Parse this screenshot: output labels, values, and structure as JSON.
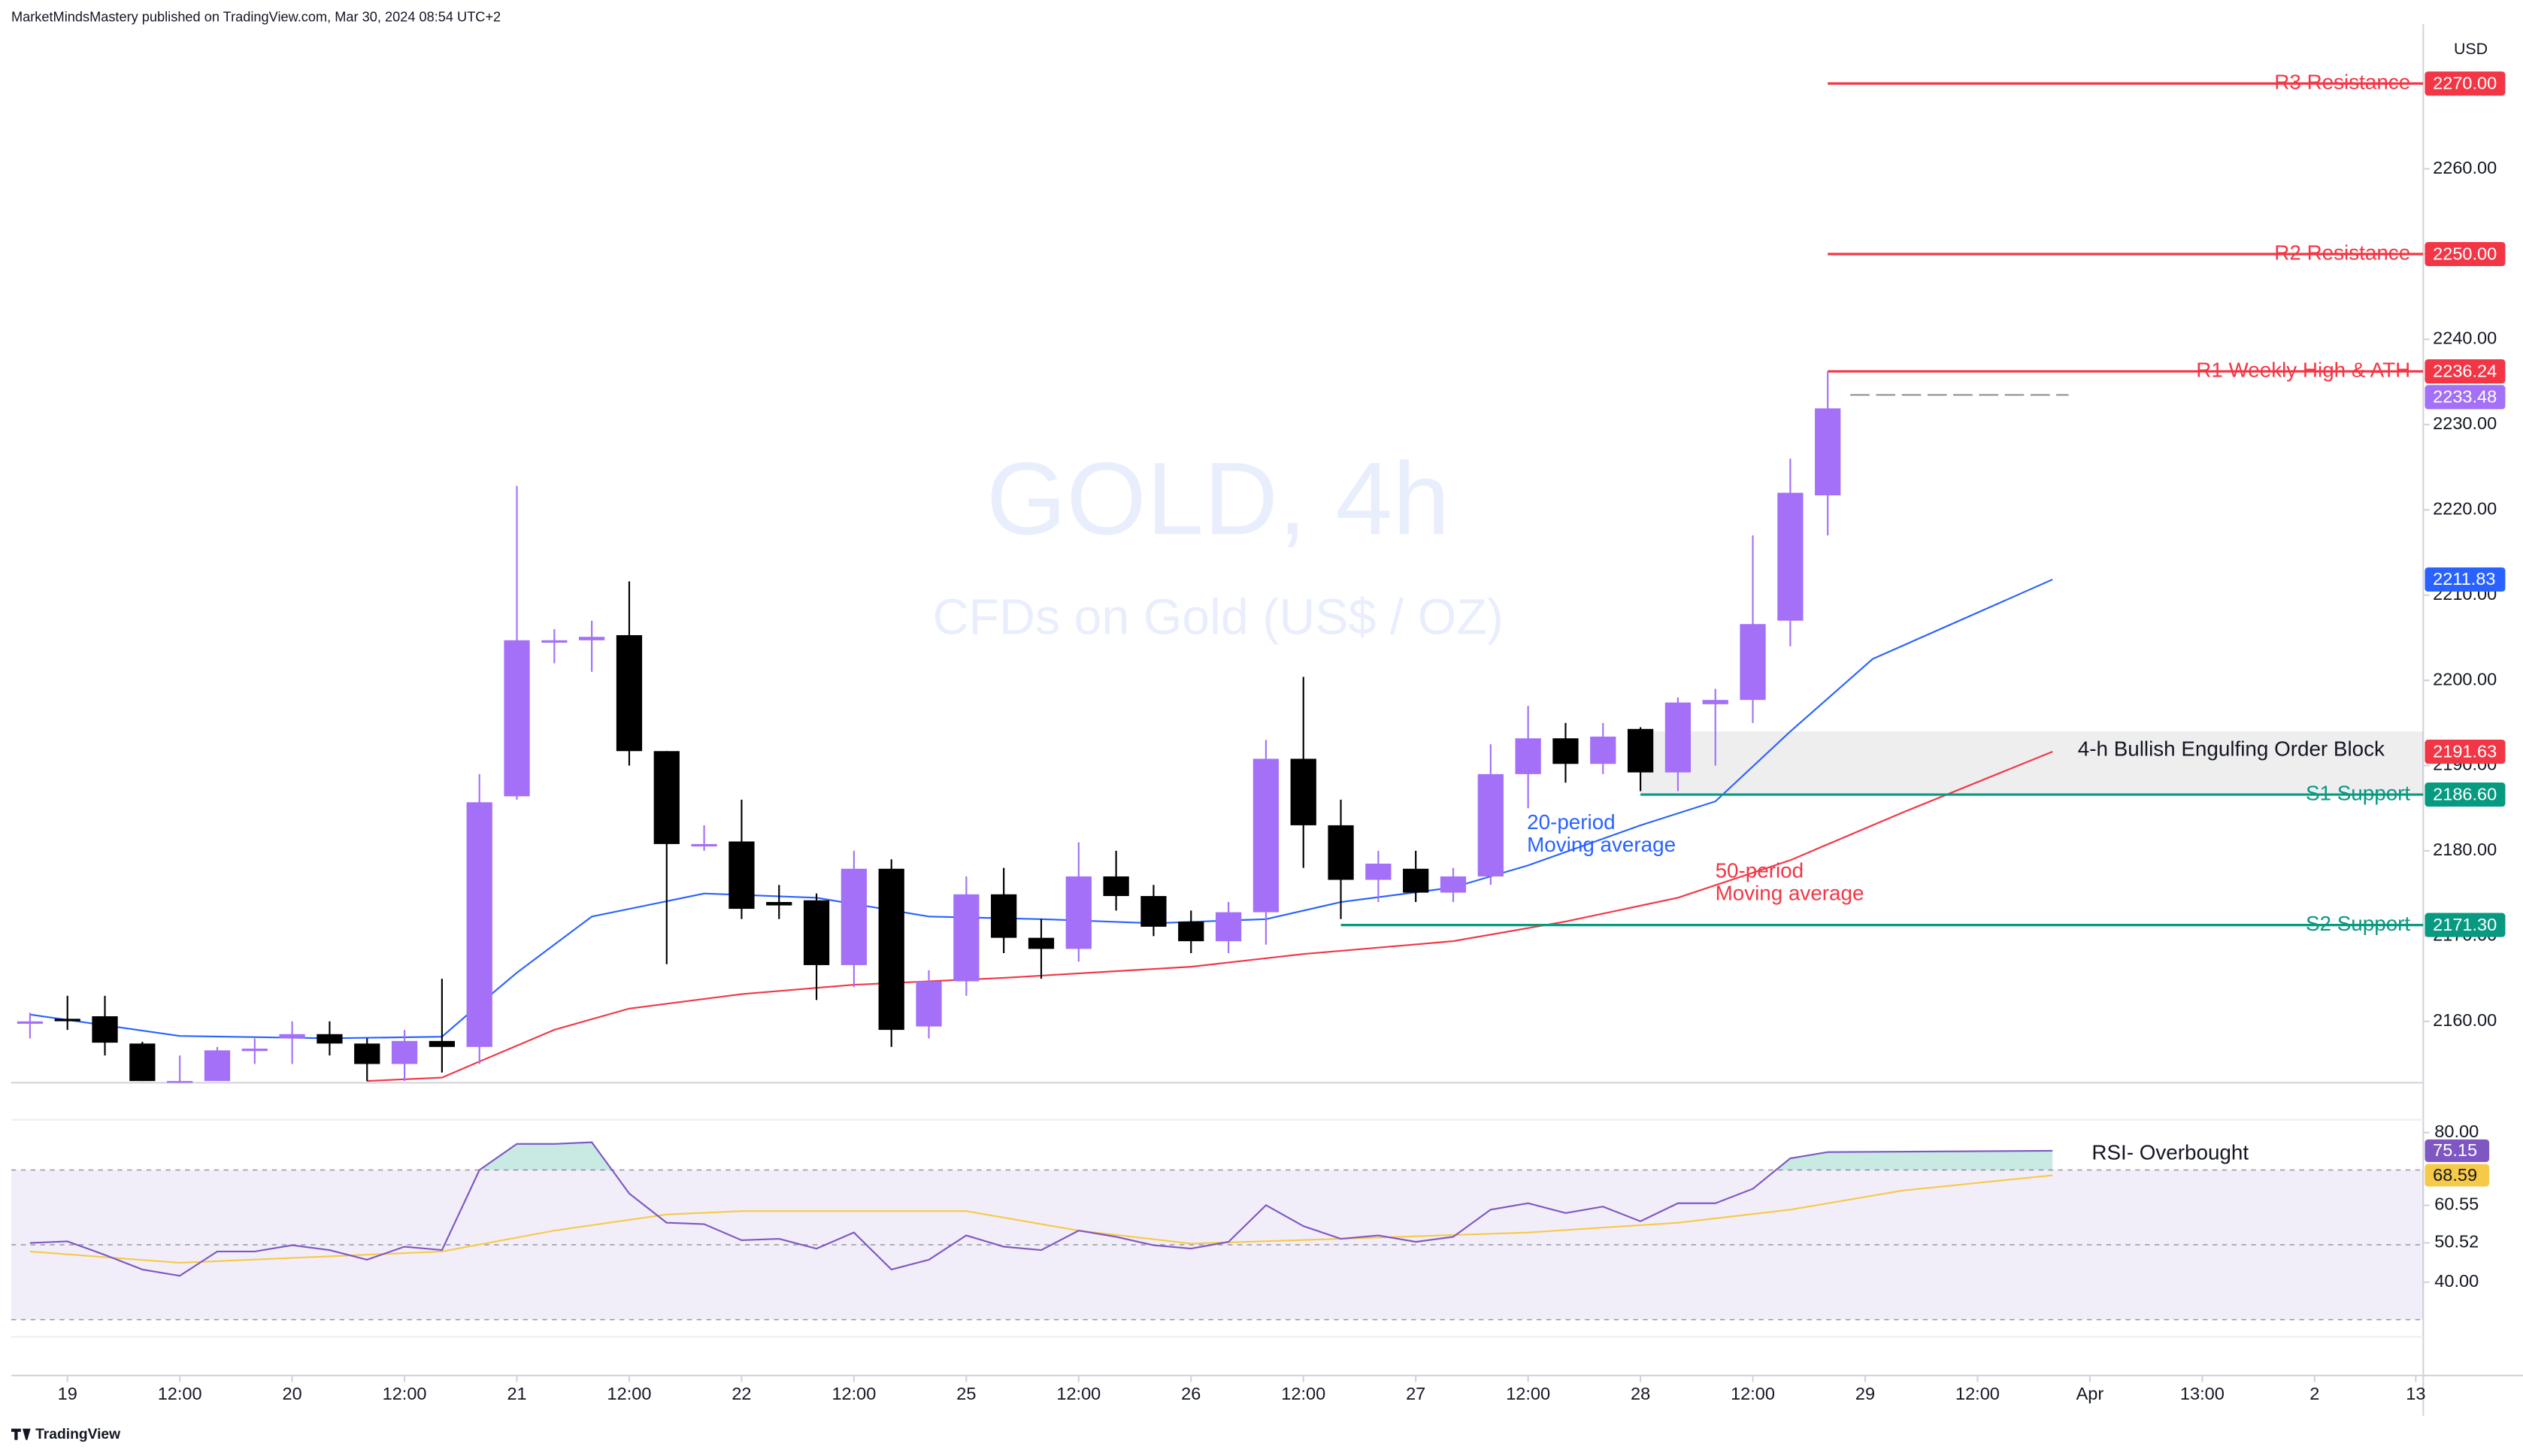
{
  "header": "MarketMindsMastery published on TradingView.com, Mar 30, 2024 08:54 UTC+2",
  "footer": "TradingView",
  "chart_data": {
    "type": "candlestick",
    "title": "GOLD, 4h",
    "subtitle": "CFDs on Gold (US$ / OZ)",
    "currency": "USD",
    "up_color": "#a370f7",
    "down_color": "#000000",
    "open": [
      2160,
      2160.3,
      2160.6,
      2157.4,
      2153,
      2153,
      2156.8,
      2158,
      2158.5,
      2157.4,
      2155,
      2157.7,
      2157,
      2186.4,
      2204.7,
      2204.7,
      2205.3,
      2191.7,
      2180.8,
      2181.1,
      2174,
      2174.2,
      2166.6,
      2177.9,
      2159.4,
      2164.7,
      2174.9,
      2169.8,
      2168.5,
      2177,
      2174.7,
      2171.7,
      2169.4,
      2172.8,
      2190.8,
      2183,
      2176.6,
      2177.9,
      2175.1,
      2177,
      2189,
      2193.2,
      2190.2,
      2194.3,
      2189.2,
      2197.2,
      2197.7,
      2207,
      2221.7
    ],
    "high": [
      2161,
      2163,
      2163,
      2157.6,
      2156,
      2157,
      2158,
      2160,
      2160,
      2158,
      2159,
      2165,
      2189,
      2222.8,
      2206,
      2207,
      2211.6,
      2191.7,
      2183,
      2186,
      2176,
      2175,
      2180,
      2179,
      2166,
      2177,
      2178,
      2172,
      2181,
      2180,
      2176,
      2173,
      2174,
      2193,
      2200.4,
      2186,
      2180,
      2180,
      2178,
      2192.5,
      2197,
      2195,
      2195,
      2194.5,
      2198,
      2199,
      2217,
      2226,
      2236.24
    ],
    "low": [
      2158,
      2159,
      2156,
      2153,
      2152.8,
      2153,
      2155,
      2155,
      2156,
      2153,
      2153,
      2154,
      2155,
      2186,
      2202,
      2201,
      2190,
      2166.7,
      2180,
      2172,
      2172,
      2162.5,
      2164,
      2157,
      2158,
      2163,
      2168,
      2165,
      2167,
      2173,
      2170,
      2168,
      2168,
      2169,
      2178,
      2172,
      2174,
      2174,
      2174,
      2176,
      2185,
      2188,
      2189,
      2187,
      2187,
      2190,
      2195,
      2204,
      2217
    ],
    "close": [
      2160,
      2160.2,
      2157.5,
      2153,
      2153,
      2156.6,
      2156.8,
      2158.5,
      2157.4,
      2155,
      2157.7,
      2157,
      2185.7,
      2204.7,
      2204.7,
      2205.1,
      2191.7,
      2180.8,
      2180.8,
      2173.2,
      2173.6,
      2166.6,
      2177.9,
      2159,
      2164.7,
      2174.9,
      2169.8,
      2168.5,
      2177,
      2174.7,
      2171.1,
      2169.4,
      2172.8,
      2190.8,
      2183,
      2176.6,
      2178.5,
      2175.1,
      2177,
      2189,
      2193.2,
      2190.2,
      2193.4,
      2189.2,
      2197.4,
      2197.7,
      2206.6,
      2222,
      2231.9
    ],
    "xticks": [
      {
        "value": 1,
        "label": "19"
      },
      {
        "value": 4,
        "label": "12:00"
      },
      {
        "value": 7,
        "label": "20"
      },
      {
        "value": 10,
        "label": "12:00"
      },
      {
        "value": 13,
        "label": "21"
      },
      {
        "value": 16,
        "label": "12:00"
      },
      {
        "value": 19,
        "label": "22"
      },
      {
        "value": 22,
        "label": "12:00"
      },
      {
        "value": 25,
        "label": "25"
      },
      {
        "value": 28,
        "label": "12:00"
      },
      {
        "value": 31,
        "label": "26"
      },
      {
        "value": 34,
        "label": "12:00"
      },
      {
        "value": 37,
        "label": "27"
      },
      {
        "value": 40,
        "label": "12:00"
      },
      {
        "value": 43,
        "label": "28"
      },
      {
        "value": 46,
        "label": "12:00"
      },
      {
        "value": 49,
        "label": "29"
      },
      {
        "value": 52,
        "label": "12:00"
      },
      {
        "value": 55,
        "label": "Apr"
      },
      {
        "value": 58,
        "label": "13:00"
      },
      {
        "value": 61,
        "label": "2"
      },
      {
        "value": 63.7,
        "label": "13"
      }
    ],
    "xlim": [
      -0.5,
      63.9
    ],
    "ylim": [
      2152.8,
      2279.8
    ],
    "yticks": [
      {
        "value": 2160,
        "label": "2160.00"
      },
      {
        "value": 2170,
        "label": "2170.00"
      },
      {
        "value": 2180,
        "label": "2180.00"
      },
      {
        "value": 2190,
        "label": "2190.00"
      },
      {
        "value": 2200,
        "label": "2200.00"
      },
      {
        "value": 2210,
        "label": "2210.00"
      },
      {
        "value": 2220,
        "label": "2220.00"
      },
      {
        "value": 2230,
        "label": "2230.00"
      },
      {
        "value": 2240,
        "label": "2240.00"
      },
      {
        "value": 2250,
        "label": "2250.00"
      },
      {
        "value": 2260,
        "label": "2260.00"
      }
    ],
    "moving_averages": [
      {
        "name": [
          "20-period",
          "Moving average"
        ],
        "color": "#2962ff",
        "bar_index": [
          0,
          4,
          8,
          11,
          12,
          13,
          15,
          18,
          21,
          24,
          27,
          30,
          33,
          35,
          38,
          40,
          43,
          45,
          47,
          49.2,
          54
        ],
        "values": [
          2160.8,
          2158.3,
          2158,
          2158.2,
          2162,
          2165.7,
          2172.3,
          2175,
          2174.5,
          2172.3,
          2172,
          2171.5,
          2172,
          2174,
          2175.7,
          2178.3,
          2183,
          2185.8,
          2194,
          2202.5,
          2211.83
        ],
        "last_label": "2211.83"
      },
      {
        "name": [
          "50-period",
          "Moving average"
        ],
        "color": "#f23645",
        "bar_index": [
          9,
          11,
          12,
          14,
          16,
          19,
          22,
          26,
          31,
          34,
          38,
          41,
          44,
          47,
          50,
          54
        ],
        "values": [
          2153,
          2153.4,
          2155.3,
          2159,
          2161.5,
          2163.2,
          2164.3,
          2165.1,
          2166.4,
          2167.9,
          2169.4,
          2171.7,
          2174.5,
          2178.9,
          2184.5,
          2191.63
        ],
        "last_label": "2191.63"
      }
    ],
    "levels": [
      {
        "name": "R3 Resistance",
        "value": 2270,
        "label": "2270.00",
        "color": "#f23645",
        "start": 48
      },
      {
        "name": "R2 Resistance",
        "value": 2250,
        "label": "2250.00",
        "color": "#f23645",
        "start": 48
      },
      {
        "name": "R1 Weekly High & ATH",
        "value": 2236.24,
        "label": "2236.24",
        "color": "#f23645",
        "start": 48
      },
      {
        "name": "S1 Support",
        "value": 2186.6,
        "label": "2186.60",
        "color": "#089981",
        "start": 43
      },
      {
        "name": "S2 Support",
        "value": 2171.3,
        "label": "2171.30",
        "color": "#089981",
        "start": 35
      }
    ],
    "zone": {
      "name": "4-h Bullish Engulfing Order Block",
      "low": 2186.6,
      "high": 2194,
      "start": 43
    },
    "last_price": {
      "value": 2233.48,
      "label": "2233.48",
      "color": "#a370f7"
    },
    "rsi": {
      "name": "RSI- Overbought",
      "color": "#7e57c2",
      "bar_index": [
        0,
        1,
        2,
        3,
        4,
        5,
        6,
        7,
        8,
        9,
        10,
        11,
        12,
        13,
        14,
        15,
        16,
        17,
        18,
        19,
        20,
        21,
        22,
        23,
        24,
        25,
        26,
        27,
        28,
        29,
        30,
        31,
        32,
        33,
        34,
        35,
        36,
        37,
        38,
        39,
        40,
        41,
        42,
        43,
        44,
        45,
        46,
        47,
        48,
        54
      ],
      "values": [
        50.5,
        50.9,
        47.3,
        43.4,
        41.7,
        48.2,
        48.2,
        49.9,
        48.6,
        46,
        49.5,
        48.6,
        70,
        77,
        77,
        77.4,
        63.7,
        55.9,
        55.5,
        51.2,
        51.6,
        49,
        53.3,
        43.4,
        46,
        52.5,
        49.5,
        48.6,
        53.8,
        52.1,
        49.9,
        49,
        50.8,
        60.6,
        55,
        51.6,
        52.5,
        50.8,
        52.1,
        59.4,
        61.1,
        58.5,
        60.2,
        56.3,
        61.1,
        61.1,
        65,
        73.1,
        74.8,
        75.15
      ],
      "value_label": "75.15",
      "ma": {
        "color": "#f7c948",
        "bar_index": [
          0,
          4,
          8,
          11,
          14,
          17,
          19,
          25,
          28,
          31,
          35,
          40,
          44,
          47,
          50,
          54
        ],
        "values": [
          48.2,
          45.2,
          46.9,
          48.2,
          53.8,
          58.1,
          59,
          59,
          53.8,
          50.3,
          51.6,
          53.3,
          55.9,
          59.4,
          64.5,
          68.59
        ],
        "value_label": "68.59"
      },
      "ylim": [
        25.8,
        83
      ],
      "yticks": [
        {
          "value": 80,
          "label": "80.00"
        },
        {
          "value": 60.55,
          "label": "60.55"
        },
        {
          "value": 50.52,
          "label": "50.52"
        },
        {
          "value": 40,
          "label": "40.00"
        }
      ],
      "upper": 70,
      "middle": 50,
      "lower": 30
    }
  }
}
